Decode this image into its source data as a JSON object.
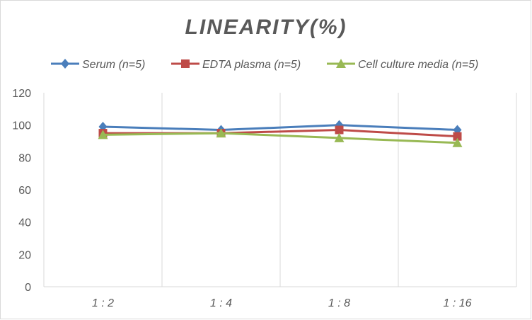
{
  "chart_data": {
    "type": "line",
    "title": "LINEARITY(%)",
    "xlabel": "",
    "ylabel": "",
    "categories": [
      "1:2",
      "1:4",
      "1:8",
      "1:16"
    ],
    "ylim": [
      0,
      120
    ],
    "yticks": [
      0,
      20,
      40,
      60,
      80,
      100,
      120
    ],
    "grid": "vertical",
    "legend_position": "top",
    "series": [
      {
        "name": "Serum (n=5)",
        "values": [
          99,
          97,
          100,
          97
        ],
        "color": "#4A7EBB",
        "marker": "diamond"
      },
      {
        "name": "EDTA plasma (n=5)",
        "values": [
          95,
          95,
          97,
          93
        ],
        "color": "#BE4B48",
        "marker": "square"
      },
      {
        "name": "Cell culture media (n=5)",
        "values": [
          94,
          95,
          92,
          89
        ],
        "color": "#98B954",
        "marker": "triangle"
      }
    ]
  }
}
